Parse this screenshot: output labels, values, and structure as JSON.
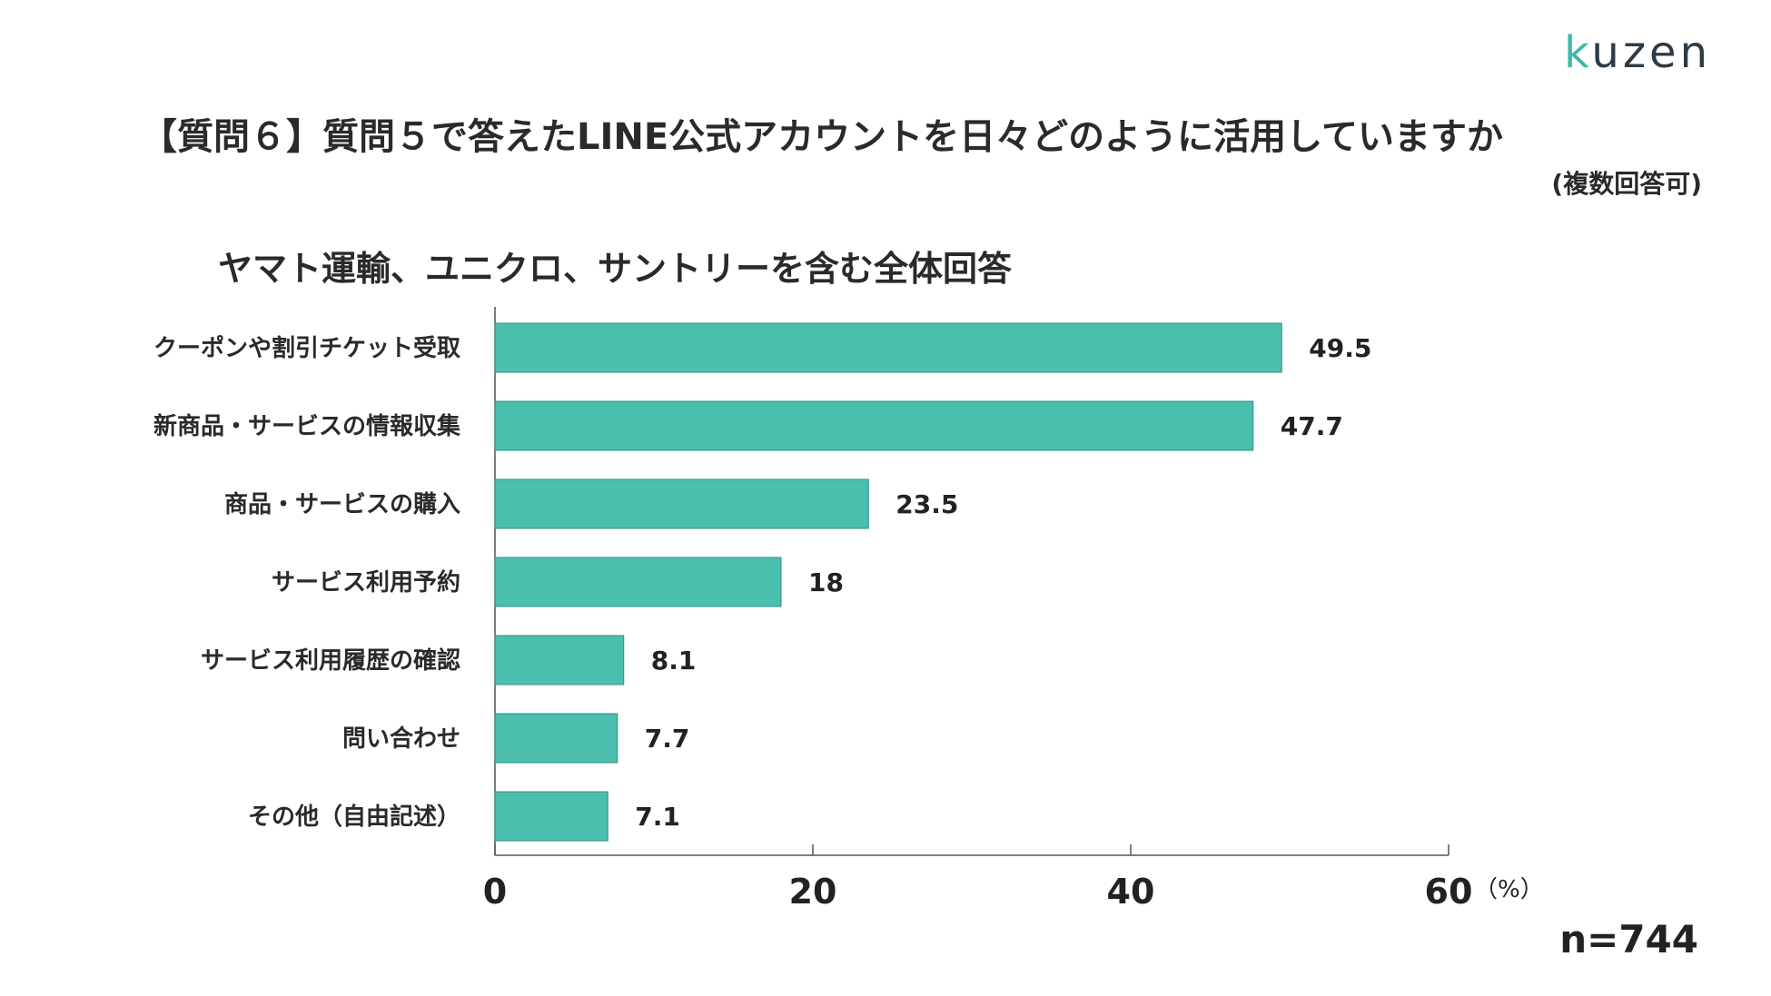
{
  "logo": {
    "first": "k",
    "rest": "uzen"
  },
  "title": "【質問６】質問５で答えたLINE公式アカウントを日々どのように活用していますか",
  "note": "(複数回答可)",
  "subtitle": "ヤマト運輸、ユニクロ、サントリーを含む全体回答",
  "sample": "n=744",
  "chart_data": {
    "type": "bar",
    "orientation": "horizontal",
    "categories": [
      "クーポンや割引チケット受取",
      "新商品・サービスの情報収集",
      "商品・サービスの購入",
      "サービス利用予約",
      "サービス利用履歴の確認",
      "問い合わせ",
      "その他（自由記述）"
    ],
    "values": [
      49.5,
      47.7,
      23.5,
      18,
      8.1,
      7.7,
      7.1
    ],
    "value_labels": [
      "49.5",
      "47.7",
      "23.5",
      "18",
      "8.1",
      "7.7",
      "7.1"
    ],
    "xlim": [
      0,
      60
    ],
    "xticks": [
      0,
      20,
      40,
      60
    ],
    "xtick_labels": [
      "0",
      "20",
      "40",
      "60"
    ],
    "unit_label": "（%）",
    "bar_color": "#4bbfad",
    "bar_edge_color": "#2d8f81",
    "grid": false
  }
}
